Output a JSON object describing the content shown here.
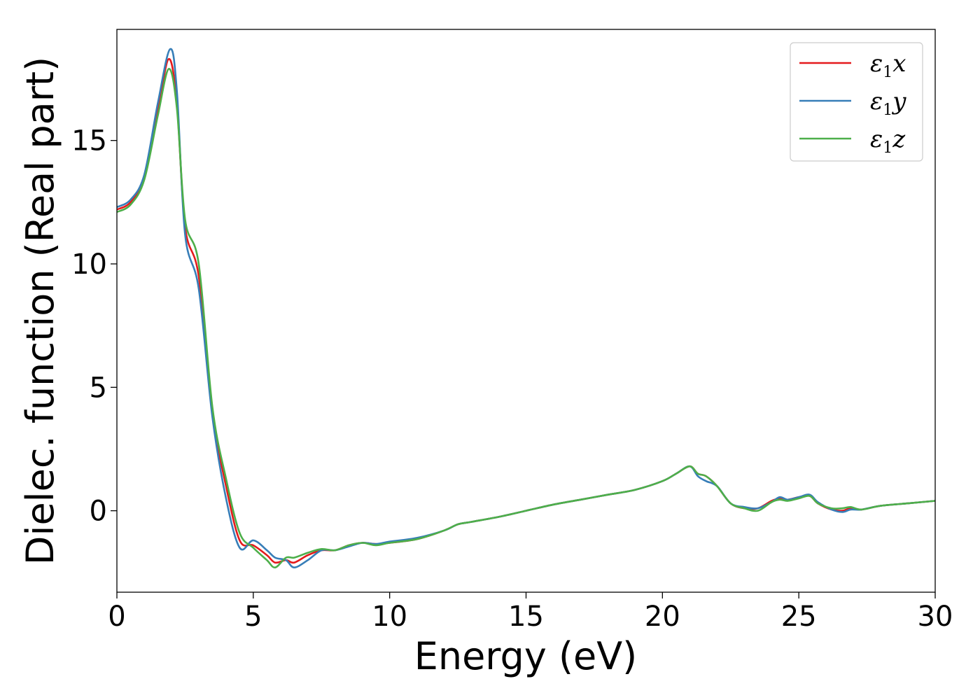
{
  "chart_data": {
    "type": "line",
    "title": "",
    "xlabel": "Energy (eV)",
    "ylabel": "Dielec. function (Real part)",
    "xlim": [
      0,
      30
    ],
    "ylim": [
      -3.3,
      19.5
    ],
    "xticks": [
      0,
      5,
      10,
      15,
      20,
      25,
      30
    ],
    "yticks": [
      0,
      5,
      10,
      15
    ],
    "grid": false,
    "legend_position": "top-right",
    "series": [
      {
        "name": "ε1x",
        "symbol": "ε",
        "sub": "1",
        "suffix": "x",
        "color": "#e41a1c",
        "x": [
          0,
          0.5,
          1.0,
          1.5,
          1.9,
          2.2,
          2.5,
          3.0,
          3.5,
          4.0,
          4.5,
          5.0,
          5.5,
          5.8,
          6.2,
          6.5,
          7.0,
          7.5,
          8.0,
          8.5,
          9.0,
          9.5,
          10,
          11,
          12,
          12.5,
          13,
          14,
          15,
          16,
          17,
          18,
          19,
          20,
          20.5,
          21.0,
          21.3,
          21.6,
          22.0,
          22.5,
          23.0,
          23.5,
          24.0,
          24.3,
          24.6,
          25.0,
          25.4,
          25.7,
          26.2,
          26.6,
          26.9,
          27.3,
          28,
          29,
          30
        ],
        "y": [
          12.2,
          12.5,
          13.5,
          16.2,
          18.3,
          16.5,
          11.5,
          9.5,
          4.0,
          1.0,
          -1.2,
          -1.4,
          -1.8,
          -2.1,
          -2.0,
          -2.1,
          -1.8,
          -1.6,
          -1.6,
          -1.4,
          -1.3,
          -1.35,
          -1.3,
          -1.15,
          -0.8,
          -0.55,
          -0.45,
          -0.25,
          0.0,
          0.25,
          0.45,
          0.65,
          0.85,
          1.2,
          1.5,
          1.8,
          1.5,
          1.4,
          1.0,
          0.3,
          0.1,
          0.1,
          0.4,
          0.5,
          0.45,
          0.55,
          0.6,
          0.3,
          0.05,
          0.0,
          0.1,
          0.05,
          0.2,
          0.3,
          0.4
        ]
      },
      {
        "name": "ε1y",
        "symbol": "ε",
        "sub": "1",
        "suffix": "y",
        "color": "#377eb8",
        "x": [
          0,
          0.5,
          1.0,
          1.5,
          1.95,
          2.2,
          2.5,
          3.0,
          3.5,
          4.0,
          4.5,
          5.0,
          5.5,
          5.8,
          6.2,
          6.5,
          7.0,
          7.5,
          8.0,
          8.5,
          9.0,
          9.5,
          10,
          11,
          12,
          12.5,
          13,
          14,
          15,
          16,
          17,
          18,
          19,
          20,
          20.5,
          21.0,
          21.3,
          21.6,
          22.0,
          22.5,
          23.0,
          23.5,
          24.0,
          24.3,
          24.6,
          25.0,
          25.4,
          25.7,
          26.2,
          26.6,
          26.9,
          27.3,
          28,
          29,
          30
        ],
        "y": [
          12.3,
          12.6,
          13.6,
          16.5,
          18.7,
          17.0,
          11.2,
          9.0,
          3.8,
          0.5,
          -1.5,
          -1.2,
          -1.6,
          -1.9,
          -2.0,
          -2.3,
          -2.0,
          -1.6,
          -1.6,
          -1.45,
          -1.3,
          -1.35,
          -1.25,
          -1.1,
          -0.8,
          -0.55,
          -0.45,
          -0.25,
          0.0,
          0.25,
          0.45,
          0.65,
          0.85,
          1.2,
          1.5,
          1.8,
          1.4,
          1.2,
          1.0,
          0.3,
          0.15,
          0.1,
          0.35,
          0.55,
          0.45,
          0.55,
          0.65,
          0.35,
          0.05,
          -0.05,
          0.05,
          0.05,
          0.2,
          0.3,
          0.4
        ]
      },
      {
        "name": "ε1z",
        "symbol": "ε",
        "sub": "1",
        "suffix": "z",
        "color": "#4daf4a",
        "x": [
          0,
          0.5,
          1.0,
          1.5,
          1.9,
          2.2,
          2.5,
          3.0,
          3.5,
          4.0,
          4.5,
          5.0,
          5.5,
          5.8,
          6.2,
          6.5,
          7.0,
          7.5,
          8.0,
          8.5,
          9.0,
          9.5,
          10,
          11,
          12,
          12.5,
          13,
          14,
          15,
          16,
          17,
          18,
          19,
          20,
          20.5,
          21.0,
          21.3,
          21.6,
          22.0,
          22.5,
          23.0,
          23.5,
          24.0,
          24.3,
          24.6,
          25.0,
          25.4,
          25.7,
          26.2,
          26.6,
          26.9,
          27.3,
          28,
          29,
          30
        ],
        "y": [
          12.1,
          12.4,
          13.4,
          16.0,
          17.9,
          16.3,
          11.8,
          10.0,
          4.2,
          1.3,
          -0.9,
          -1.5,
          -2.0,
          -2.3,
          -1.9,
          -1.9,
          -1.7,
          -1.55,
          -1.6,
          -1.4,
          -1.3,
          -1.4,
          -1.3,
          -1.15,
          -0.8,
          -0.55,
          -0.45,
          -0.25,
          0.0,
          0.25,
          0.45,
          0.65,
          0.85,
          1.2,
          1.5,
          1.8,
          1.5,
          1.4,
          1.0,
          0.3,
          0.1,
          0.0,
          0.35,
          0.45,
          0.4,
          0.5,
          0.6,
          0.3,
          0.1,
          0.1,
          0.15,
          0.05,
          0.2,
          0.3,
          0.4
        ]
      }
    ]
  }
}
